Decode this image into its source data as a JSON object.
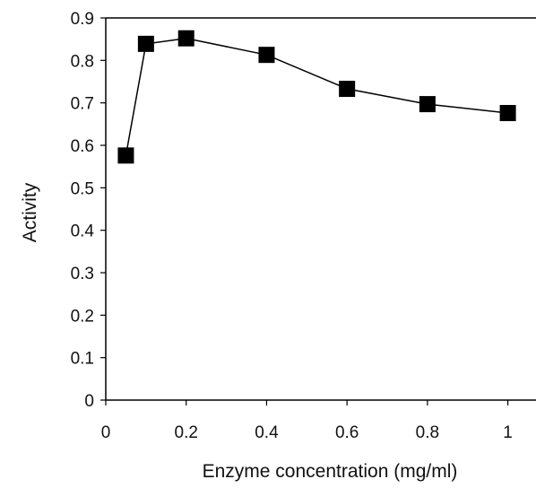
{
  "chart_data": {
    "type": "line",
    "title": "",
    "xlabel": "Enzyme concentration (mg/ml)",
    "ylabel": "Activity",
    "xlim": [
      0,
      1.07
    ],
    "ylim": [
      0,
      0.9
    ],
    "x_ticks": [
      0,
      0.2,
      0.4,
      0.6,
      0.8,
      1
    ],
    "x_tick_labels": [
      "0",
      "0.2",
      "0.4",
      "0.6",
      "0.8",
      "1"
    ],
    "y_ticks": [
      0,
      0.1,
      0.2,
      0.3,
      0.4,
      0.5,
      0.6,
      0.7,
      0.8,
      0.9
    ],
    "y_tick_labels": [
      "0",
      "0.1",
      "0.2",
      "0.3",
      "0.4",
      "0.5",
      "0.6",
      "0.7",
      "0.8",
      "0.9"
    ],
    "grid": false,
    "legend": "none",
    "marker": "square",
    "series": [
      {
        "x": [
          0.05,
          0.1,
          0.2,
          0.4,
          0.6,
          0.8,
          1.0
        ],
        "y": [
          0.576,
          0.839,
          0.852,
          0.813,
          0.733,
          0.697,
          0.676
        ]
      }
    ],
    "colors": {
      "line": "#000000",
      "marker": "#000000",
      "axis": "#000000"
    }
  }
}
